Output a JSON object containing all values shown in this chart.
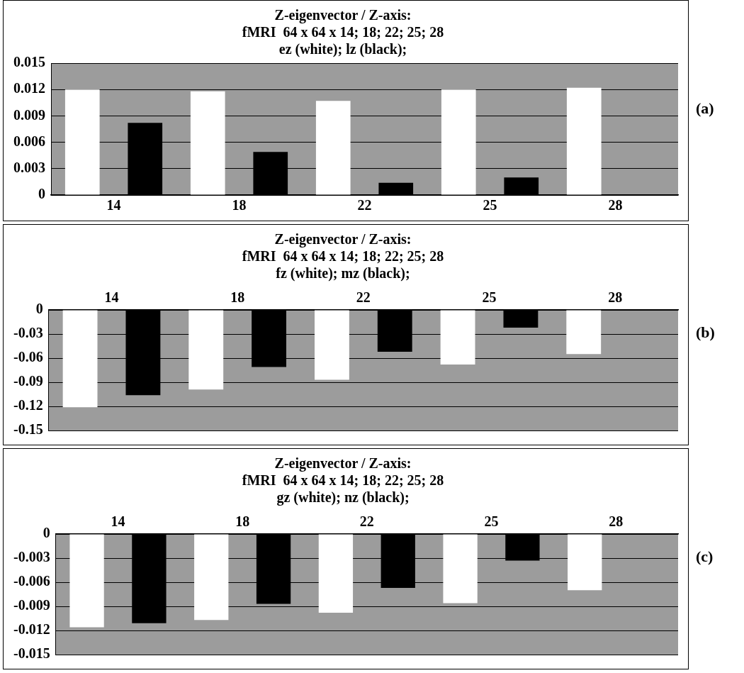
{
  "chart_data": [
    {
      "type": "bar",
      "title": "Z-eigenvector / Z-axis:\nfMRI  64 x 64 x 14; 18; 22; 25; 28\nez (white); lz (black);",
      "categories": [
        "14",
        "18",
        "22",
        "25",
        "28"
      ],
      "series": [
        {
          "color": "#ffffff",
          "values": [
            0.012,
            0.0118,
            0.0107,
            0.012,
            0.0122
          ]
        },
        {
          "color": "#000000",
          "values": [
            0.0082,
            0.0049,
            0.0014,
            0.002,
            0
          ]
        }
      ],
      "ylim": [
        0,
        0.015
      ],
      "yticks": [
        0,
        0.003,
        0.006,
        0.009,
        0.012,
        0.015
      ],
      "grid": "y",
      "legend": false,
      "annotations": [
        "(a)"
      ]
    },
    {
      "type": "bar",
      "title": "Z-eigenvector / Z-axis:\nfMRI  64 x 64 x 14; 18; 22; 25; 28\nfz (white); mz (black);",
      "categories": [
        "14",
        "18",
        "22",
        "25",
        "28"
      ],
      "series": [
        {
          "color": "#ffffff",
          "values": [
            -0.121,
            -0.099,
            -0.087,
            -0.068,
            -0.055
          ]
        },
        {
          "color": "#000000",
          "values": [
            -0.106,
            -0.071,
            -0.052,
            -0.022,
            null
          ]
        }
      ],
      "ylim": [
        -0.15,
        0
      ],
      "yticks": [
        -0.15,
        -0.12,
        -0.09,
        -0.06,
        -0.03,
        0
      ],
      "grid": "y",
      "legend": false,
      "annotations": [
        "(b)"
      ]
    },
    {
      "type": "bar",
      "title": "Z-eigenvector / Z-axis:\nfMRI  64 x 64 x 14; 18; 22; 25; 28\ngz (white); nz (black);",
      "categories": [
        "14",
        "18",
        "22",
        "25",
        "28"
      ],
      "series": [
        {
          "color": "#ffffff",
          "values": [
            -0.0116,
            -0.0107,
            -0.0098,
            -0.0086,
            -0.007
          ]
        },
        {
          "color": "#000000",
          "values": [
            -0.0111,
            -0.0087,
            -0.0067,
            -0.0033,
            null
          ]
        }
      ],
      "ylim": [
        -0.015,
        0
      ],
      "yticks": [
        -0.015,
        -0.012,
        -0.009,
        -0.006,
        -0.003,
        0
      ],
      "grid": "y",
      "legend": false,
      "annotations": [
        "(c)"
      ]
    }
  ]
}
